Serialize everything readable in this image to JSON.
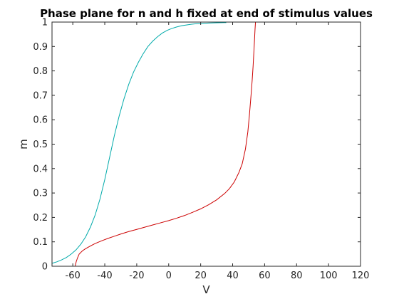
{
  "chart_data": {
    "type": "line",
    "title": "Phase plane for n and h fixed at end of stimulus values",
    "xlabel": "V",
    "ylabel": "m",
    "xlim": [
      -73,
      120
    ],
    "ylim": [
      0,
      1
    ],
    "xticks": [
      -60,
      -40,
      -20,
      0,
      20,
      40,
      60,
      80,
      100,
      120
    ],
    "yticks": [
      0,
      0.1,
      0.2,
      0.3,
      0.4,
      0.5,
      0.6,
      0.7,
      0.8,
      0.9,
      1
    ],
    "xtick_labels": [
      "-60",
      "-40",
      "-20",
      "0",
      "20",
      "40",
      "60",
      "80",
      "100",
      "120"
    ],
    "ytick_labels": [
      "0",
      "0.1",
      "0.2",
      "0.3",
      "0.4",
      "0.5",
      "0.6",
      "0.7",
      "0.8",
      "0.9",
      "1"
    ],
    "grid": false,
    "legend": "none",
    "series": [
      {
        "color": "#00aaaa",
        "x": [
          -73,
          -70,
          -67,
          -64,
          -61,
          -58,
          -55,
          -52,
          -49,
          -46,
          -43,
          -40,
          -37,
          -34,
          -31,
          -28,
          -25,
          -22,
          -19,
          -16,
          -13,
          -10,
          -7,
          -4,
          -1,
          2,
          5,
          8,
          11,
          14,
          17,
          20,
          25,
          30,
          35,
          36
        ],
        "y": [
          0.012,
          0.018,
          0.026,
          0.036,
          0.05,
          0.067,
          0.09,
          0.12,
          0.16,
          0.21,
          0.275,
          0.355,
          0.445,
          0.535,
          0.615,
          0.685,
          0.745,
          0.795,
          0.835,
          0.87,
          0.9,
          0.922,
          0.94,
          0.955,
          0.966,
          0.974,
          0.98,
          0.985,
          0.988,
          0.991,
          0.993,
          0.994,
          0.996,
          0.997,
          0.998,
          0.998
        ]
      },
      {
        "color": "#cc0000",
        "x": [
          -58.5,
          -58.2,
          -57.8,
          -57,
          -56,
          -54,
          -52,
          -49,
          -46,
          -42,
          -38,
          -34,
          -30,
          -25,
          -20,
          -15,
          -10,
          -5,
          0,
          5,
          10,
          15,
          20,
          25,
          30,
          35,
          38,
          41,
          44,
          46,
          48,
          49.5,
          50.5,
          51.5,
          52.2,
          52.8,
          53.3,
          53.7,
          54,
          54.3
        ],
        "y": [
          0.0,
          0.01,
          0.02,
          0.035,
          0.05,
          0.063,
          0.072,
          0.083,
          0.093,
          0.104,
          0.114,
          0.123,
          0.132,
          0.142,
          0.151,
          0.16,
          0.169,
          0.178,
          0.187,
          0.197,
          0.208,
          0.221,
          0.235,
          0.252,
          0.272,
          0.298,
          0.318,
          0.345,
          0.385,
          0.42,
          0.48,
          0.55,
          0.62,
          0.7,
          0.76,
          0.82,
          0.88,
          0.93,
          0.97,
          1.0
        ]
      }
    ]
  }
}
